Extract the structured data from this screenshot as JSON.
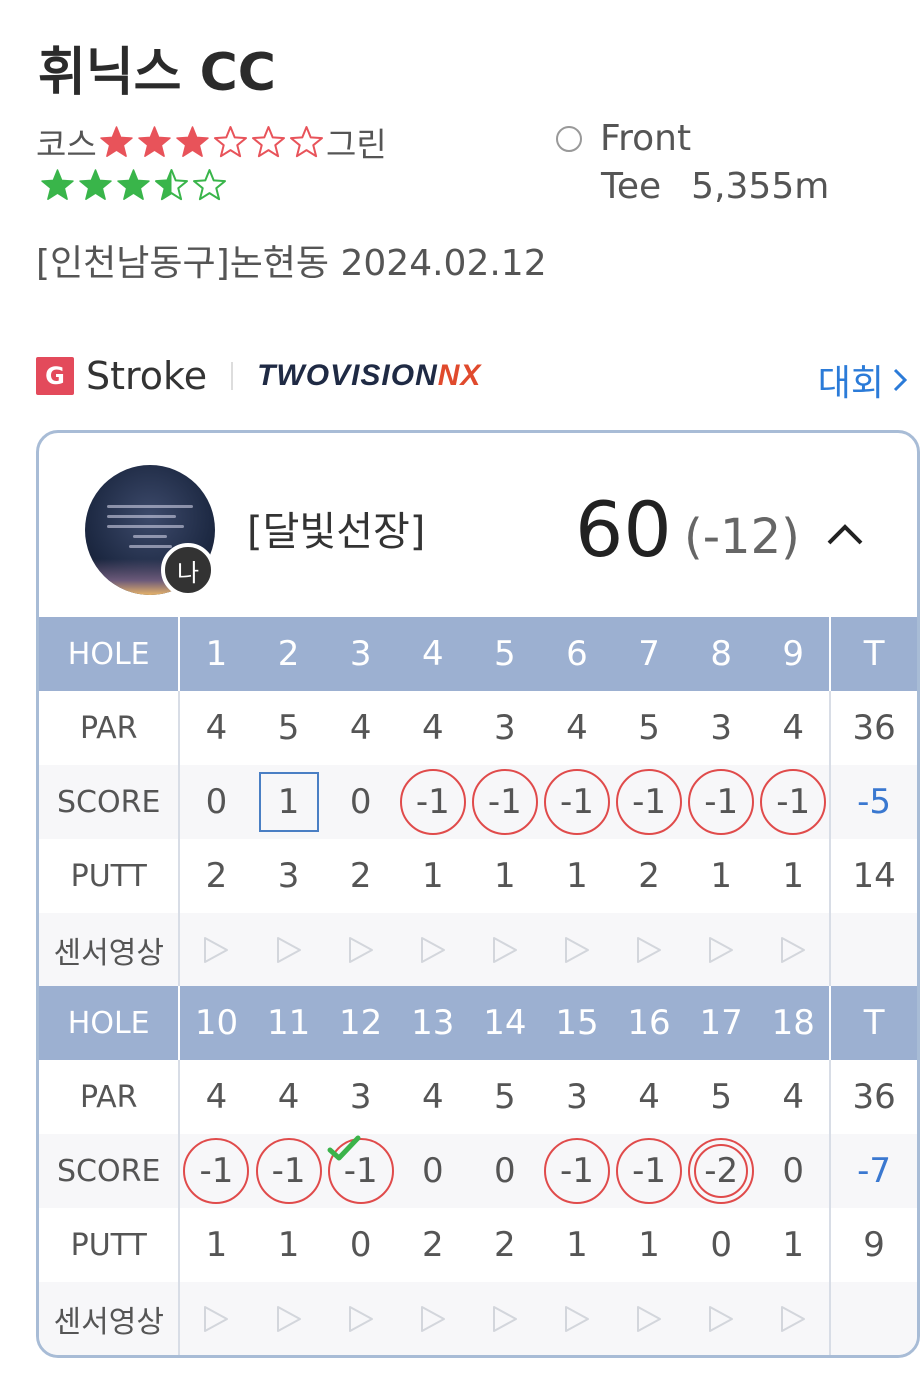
{
  "course": {
    "name": "휘닉스 CC",
    "course_label": "코스",
    "green_label": "그린",
    "course_rating": 3,
    "course_rating_max": 6,
    "green_rating": 3.5,
    "green_rating_max": 5,
    "tee_name": "Front",
    "tee_label": "Tee",
    "tee_distance": "5,355m",
    "location_date": "[인천남동구]논현동 2024.02.12"
  },
  "mode": {
    "badge": "G",
    "label": "Stroke",
    "brand_main": "TWOVISION",
    "brand_accent": "NX",
    "tour_link": "대회"
  },
  "player": {
    "name": "[달빛선장]",
    "me_badge": "나",
    "total": "60",
    "diff": "(-12)"
  },
  "scorecard": {
    "labels": {
      "hole": "HOLE",
      "par": "PAR",
      "score": "SCORE",
      "putt": "PUTT",
      "sensor": "센서영상",
      "total": "T"
    },
    "front": {
      "holes": [
        "1",
        "2",
        "3",
        "4",
        "5",
        "6",
        "7",
        "8",
        "9"
      ],
      "par": [
        "4",
        "5",
        "4",
        "4",
        "3",
        "4",
        "5",
        "3",
        "4"
      ],
      "par_total": "36",
      "score": [
        "0",
        "1",
        "0",
        "-1",
        "-1",
        "-1",
        "-1",
        "-1",
        "-1"
      ],
      "score_marks": [
        "none",
        "square",
        "none",
        "circle",
        "circle",
        "circle",
        "circle",
        "circle",
        "circle"
      ],
      "score_total": "-5",
      "putt": [
        "2",
        "3",
        "2",
        "1",
        "1",
        "1",
        "2",
        "1",
        "1"
      ],
      "putt_total": "14"
    },
    "back": {
      "holes": [
        "10",
        "11",
        "12",
        "13",
        "14",
        "15",
        "16",
        "17",
        "18"
      ],
      "par": [
        "4",
        "4",
        "3",
        "4",
        "5",
        "3",
        "4",
        "5",
        "4"
      ],
      "par_total": "36",
      "score": [
        "-1",
        "-1",
        "-1",
        "0",
        "0",
        "-1",
        "-1",
        "-2",
        "0"
      ],
      "score_marks": [
        "circle",
        "circle",
        "circle-check",
        "none",
        "none",
        "circle",
        "circle",
        "double",
        "none"
      ],
      "score_total": "-7",
      "putt": [
        "1",
        "1",
        "0",
        "2",
        "2",
        "1",
        "1",
        "0",
        "1"
      ],
      "putt_total": "9"
    }
  },
  "colors": {
    "header_bg": "#9cb0d1",
    "course_star": "#e8535a",
    "green_star": "#39b54a",
    "birdie_circle": "#e04b4b",
    "bogey_square": "#4a7fc4",
    "total_blue": "#3a78d0",
    "link": "#2b7bd8"
  }
}
